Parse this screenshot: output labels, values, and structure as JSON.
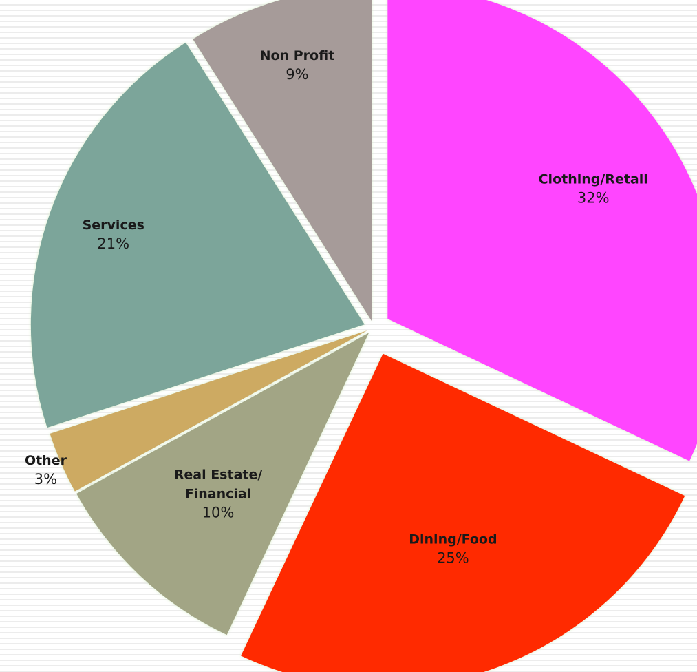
{
  "chart_data": {
    "type": "pie",
    "slices": [
      {
        "label": "Clothing/Retail",
        "label_lines": [
          "Clothing/Retail"
        ],
        "percent_label": "32%",
        "value": 32,
        "color": "#ff44ff"
      },
      {
        "label": "Dining/Food",
        "label_lines": [
          "Dining/Food"
        ],
        "percent_label": "25%",
        "value": 25,
        "color": "#ff2a00"
      },
      {
        "label": "Real Estate/ Financial",
        "label_lines": [
          "Real Estate/",
          "Financial"
        ],
        "percent_label": "10%",
        "value": 10,
        "color": "#a2a585"
      },
      {
        "label": "Other",
        "label_lines": [
          "Other"
        ],
        "percent_label": "3%",
        "value": 3,
        "color": "#cdaa62"
      },
      {
        "label": "Services",
        "label_lines": [
          "Services"
        ],
        "percent_label": "21%",
        "value": 21,
        "color": "#7ca59a"
      },
      {
        "label": "Non Profit",
        "label_lines": [
          "Non Profit"
        ],
        "percent_label": "9%",
        "value": 9,
        "color": "#a69b99"
      }
    ],
    "start_angle": "12 o'clock",
    "direction": "clockwise",
    "exploded": true,
    "label_position": "inside"
  }
}
